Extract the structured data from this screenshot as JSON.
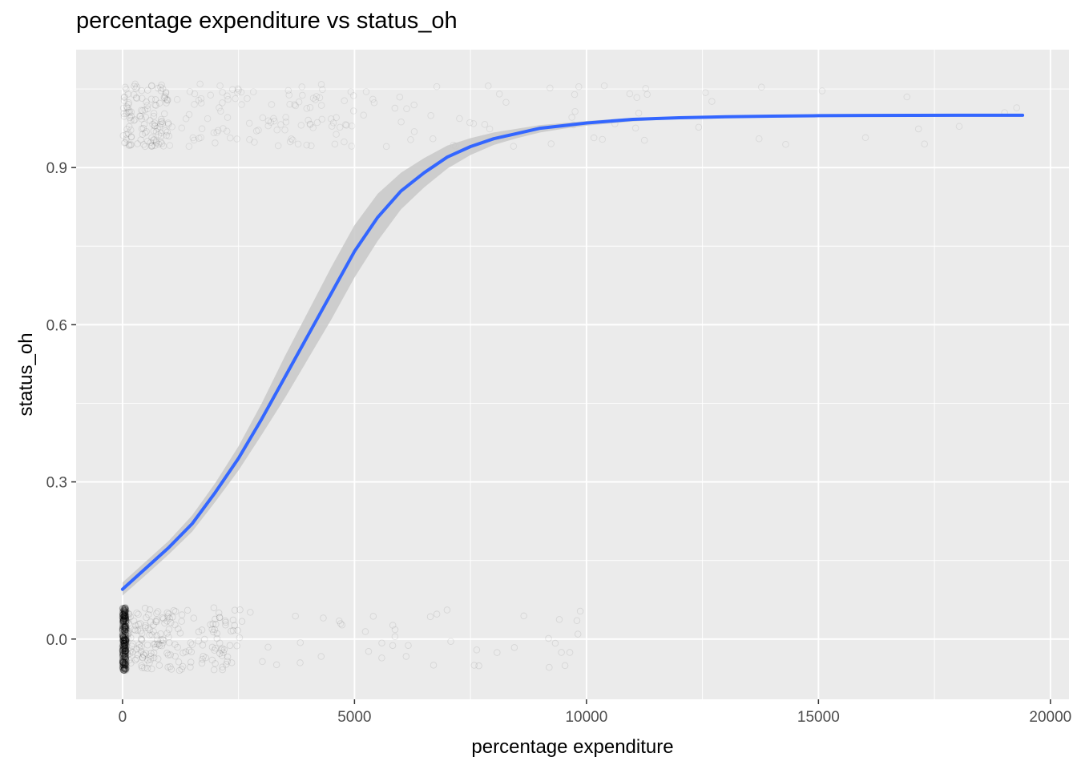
{
  "chart_data": {
    "type": "scatter",
    "title": "percentage expenditure vs status_oh",
    "xlabel": "percentage expenditure",
    "ylabel": "status_oh",
    "xlim": [
      -1000,
      20400
    ],
    "ylim": [
      -0.115,
      1.125
    ],
    "x_ticks": [
      0,
      5000,
      10000,
      15000,
      20000
    ],
    "x_tick_labels": [
      "0",
      "5000",
      "10000",
      "15000",
      "20000"
    ],
    "y_ticks": [
      0.0,
      0.3,
      0.6,
      0.9
    ],
    "y_tick_labels": [
      "0.0",
      "0.3",
      "0.6",
      "0.9"
    ],
    "grid": true,
    "colors": {
      "panel": "#ebebeb",
      "grid": "#ffffff",
      "points": "#000000",
      "smooth_line": "#3366ff",
      "ribbon": "#c8c8c8"
    },
    "series": [
      {
        "kind": "logistic-fit",
        "x": [
          0,
          500,
          1000,
          1500,
          2000,
          2500,
          3000,
          3500,
          4000,
          4500,
          5000,
          5500,
          6000,
          6500,
          7000,
          7500,
          8000,
          8500,
          9000,
          9500,
          10000,
          11000,
          12000,
          13000,
          14000,
          15000,
          16000,
          17000,
          18000,
          19400
        ],
        "y": [
          0.095,
          0.135,
          0.175,
          0.22,
          0.28,
          0.345,
          0.42,
          0.5,
          0.58,
          0.66,
          0.74,
          0.805,
          0.855,
          0.89,
          0.92,
          0.94,
          0.955,
          0.965,
          0.975,
          0.98,
          0.985,
          0.992,
          0.995,
          0.997,
          0.998,
          0.999,
          0.9995,
          0.9997,
          0.9998,
          0.9999
        ],
        "ci_lower": [
          0.083,
          0.122,
          0.162,
          0.205,
          0.262,
          0.322,
          0.39,
          0.46,
          0.535,
          0.61,
          0.69,
          0.76,
          0.82,
          0.862,
          0.898,
          0.924,
          0.943,
          0.956,
          0.967,
          0.974,
          0.98,
          0.988,
          0.993,
          0.996,
          0.997,
          0.998,
          0.9988,
          0.9992,
          0.9995,
          0.9997
        ],
        "ci_upper": [
          0.108,
          0.148,
          0.188,
          0.236,
          0.298,
          0.368,
          0.45,
          0.54,
          0.625,
          0.71,
          0.79,
          0.85,
          0.89,
          0.918,
          0.942,
          0.956,
          0.967,
          0.974,
          0.981,
          0.985,
          0.989,
          0.995,
          0.997,
          0.998,
          0.999,
          0.9995,
          0.9998,
          0.9999,
          0.9999,
          1.0
        ]
      }
    ]
  }
}
